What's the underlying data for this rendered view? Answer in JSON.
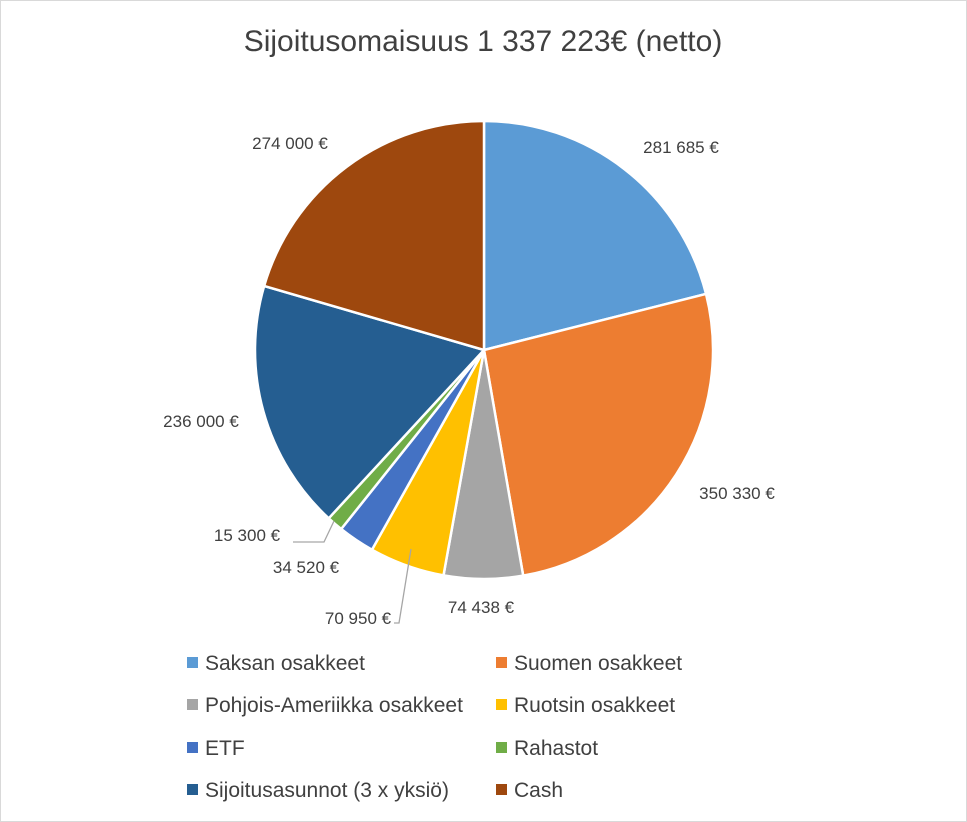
{
  "chart_data": {
    "type": "pie",
    "title": "Sijoitusomaisuus 1 337 223€ (netto)",
    "categories": [
      "Saksan osakkeet",
      "Suomen osakkeet",
      "Pohjois-Ameriikka osakkeet",
      "Ruotsin osakkeet",
      "ETF",
      "Rahastot",
      "Sijoitusasunnot (3 x yksiö)",
      "Cash"
    ],
    "values": [
      281685,
      350330,
      74438,
      70950,
      34520,
      15300,
      236000,
      274000
    ],
    "data_labels": [
      "281 685 €",
      "350 330 €",
      "74 438 €",
      "70 950 €",
      "34 520 €",
      "15 300 €",
      "236 000 €",
      "274 000 €"
    ],
    "colors": [
      "#5b9bd5",
      "#ed7d31",
      "#a5a5a5",
      "#ffc000",
      "#4472c4",
      "#70ad47",
      "#255e91",
      "#9e480e"
    ],
    "legend_position": "bottom"
  }
}
